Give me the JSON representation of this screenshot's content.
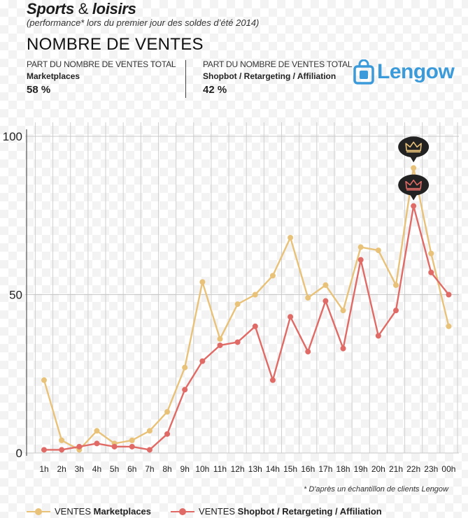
{
  "header": {
    "title_main": "Sports",
    "title_amp": "&",
    "title_rest": "loisirs",
    "subtitle": "(performance* lors du premier jour des soldes d’été 2014)",
    "section_title": "NOMBRE DE VENTES"
  },
  "kpis": {
    "left": {
      "label": "PART DU NOMBRE DE VENTES TOTAL",
      "category": "Marketplaces",
      "value": "58 %"
    },
    "right": {
      "label": "PART DU NOMBRE DE VENTES TOTAL",
      "category": "Shopbot / Retargeting / Affiliation",
      "value": "42 %"
    }
  },
  "logo": {
    "text": "Lengow"
  },
  "footnote": "* D'après un échantillon de clients Lengow",
  "legend": {
    "marketplaces_prefix": "VENTES",
    "marketplaces_name": "Marketplaces",
    "shopbot_prefix": "VENTES",
    "shopbot_name": "Shopbot / Retargeting / Affiliation"
  },
  "colors": {
    "marketplaces": "#e9c27a",
    "shopbot": "#e06b66",
    "grid": "#d0d0d0",
    "badge": "#222222",
    "crown_top": "#e9c27a",
    "crown_bottom": "#e06b66",
    "logo": "#3b9ad9"
  },
  "chart_data": {
    "type": "line",
    "title": "NOMBRE DE VENTES",
    "xlabel": "",
    "ylabel": "",
    "ylim": [
      0,
      100
    ],
    "yticks": [
      0,
      50,
      100
    ],
    "categories": [
      "1h",
      "2h",
      "3h",
      "4h",
      "5h",
      "6h",
      "7h",
      "8h",
      "9h",
      "10h",
      "11h",
      "12h",
      "13h",
      "14h",
      "15h",
      "16h",
      "17h",
      "18h",
      "19h",
      "20h",
      "21h",
      "22h",
      "23h",
      "00h"
    ],
    "series": [
      {
        "name": "VENTES Marketplaces",
        "color_key": "marketplaces",
        "values": [
          23,
          4,
          1,
          7,
          3,
          4,
          7,
          13,
          27,
          54,
          36,
          47,
          50,
          56,
          68,
          49,
          53,
          45,
          65,
          64,
          53,
          90,
          63,
          40
        ]
      },
      {
        "name": "VENTES Shopbot / Retargeting / Affiliation",
        "color_key": "shopbot",
        "values": [
          1,
          1,
          2,
          3,
          2,
          2,
          1,
          6,
          20,
          29,
          34,
          35,
          40,
          23,
          43,
          32,
          48,
          33,
          61,
          37,
          45,
          78,
          57,
          50
        ]
      }
    ],
    "annotations": [
      {
        "type": "crown-badge",
        "series": 0,
        "category": "22h"
      },
      {
        "type": "crown-badge",
        "series": 1,
        "category": "22h"
      }
    ]
  }
}
